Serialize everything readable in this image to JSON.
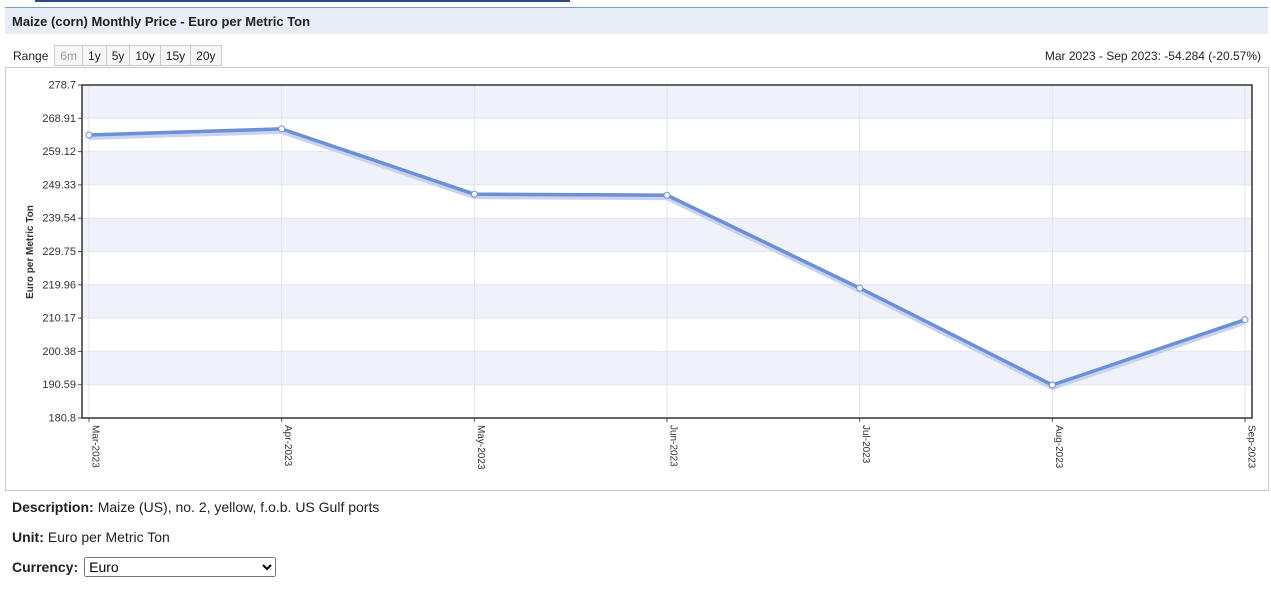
{
  "chart_data": {
    "type": "line",
    "title": "Maize (corn) Monthly Price - Euro per Metric Ton",
    "ylabel": "Euro per Metric Ton",
    "categories": [
      "Mar-2023",
      "Apr-2023",
      "May-2023",
      "Jun-2023",
      "Jul-2023",
      "Aug-2023",
      "Sep-2023"
    ],
    "series": [
      {
        "name": "Maize (corn)",
        "color": "#6b8fd8",
        "values": [
          264.0,
          265.8,
          246.6,
          246.3,
          219.0,
          190.5,
          209.7
        ]
      }
    ],
    "ylim": [
      180.8,
      278.7
    ],
    "yticks": [
      180.8,
      190.59,
      200.38,
      210.17,
      219.96,
      229.75,
      239.54,
      249.33,
      259.12,
      268.91,
      278.7
    ],
    "grid": true
  },
  "controls": {
    "range_label": "Range",
    "range_buttons": [
      "6m",
      "1y",
      "5y",
      "10y",
      "15y",
      "20y"
    ],
    "summary": "Mar 2023 - Sep 2023: -54.284 (-20.57%)"
  },
  "details": {
    "description_label": "Description:",
    "description": "Maize (US), no. 2, yellow, f.o.b. US Gulf ports",
    "unit_label": "Unit:",
    "unit": "Euro per Metric Ton",
    "currency_label": "Currency:",
    "currency": "Euro"
  }
}
